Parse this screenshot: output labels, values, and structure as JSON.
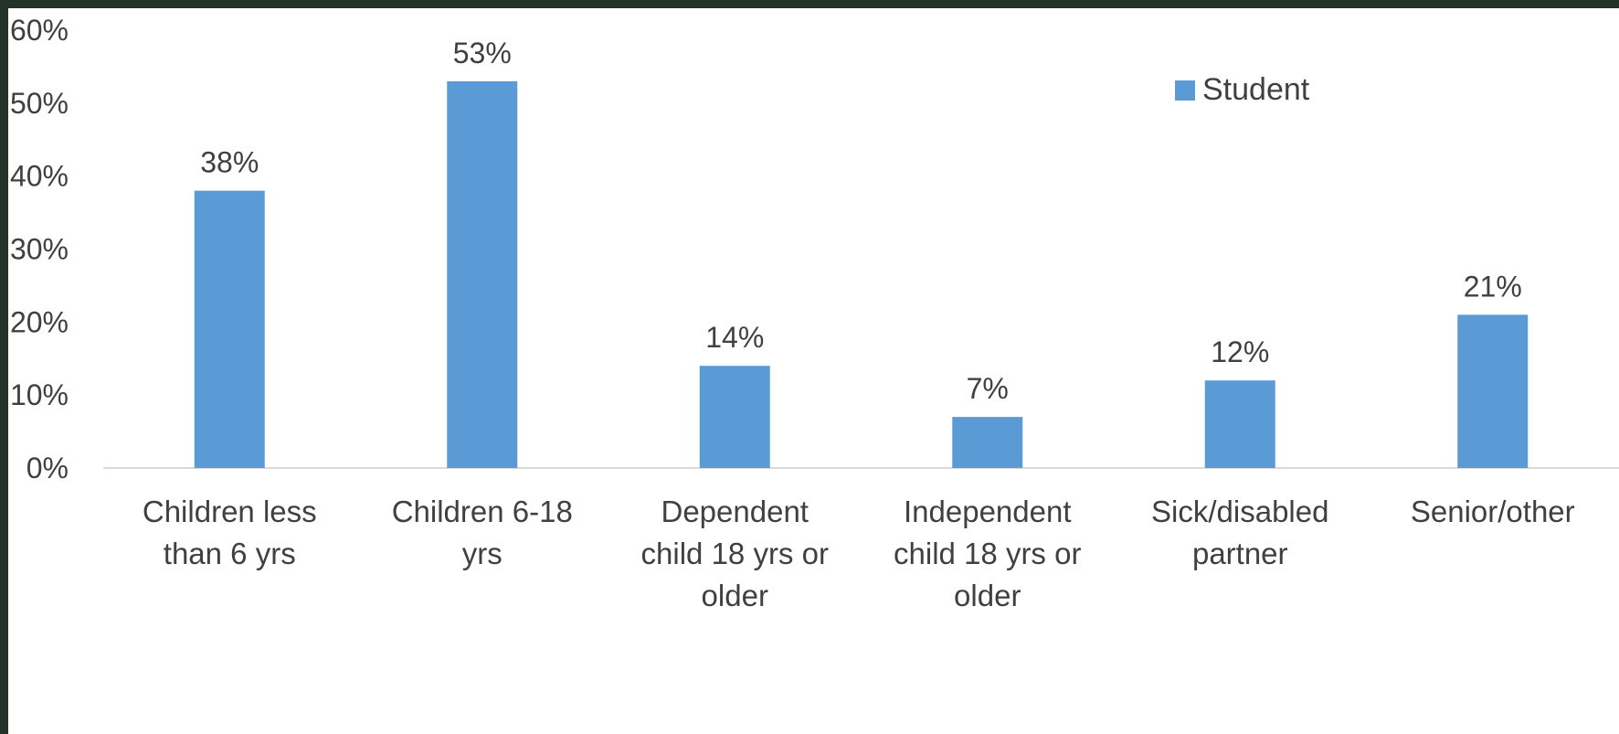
{
  "chart_data": {
    "type": "bar",
    "categories": [
      [
        "Children less",
        "than 6 yrs"
      ],
      [
        "Children 6-18",
        "yrs"
      ],
      [
        "Dependent",
        "child 18 yrs or",
        "older"
      ],
      [
        "Independent",
        "child 18 yrs or",
        "older"
      ],
      [
        "Sick/disabled",
        "partner"
      ],
      [
        "Senior/other"
      ]
    ],
    "series": [
      {
        "name": "Student",
        "values": [
          38,
          53,
          14,
          7,
          12,
          21
        ],
        "labels": [
          "38%",
          "53%",
          "14%",
          "7%",
          "12%",
          "21%"
        ],
        "color": "#5B9BD5"
      }
    ],
    "yticks": [
      "0%",
      "10%",
      "20%",
      "30%",
      "40%",
      "50%",
      "60%"
    ],
    "ylim": [
      0,
      60
    ],
    "title": "",
    "xlabel": "",
    "ylabel": "",
    "legend_position": "top-right",
    "grid": false
  }
}
